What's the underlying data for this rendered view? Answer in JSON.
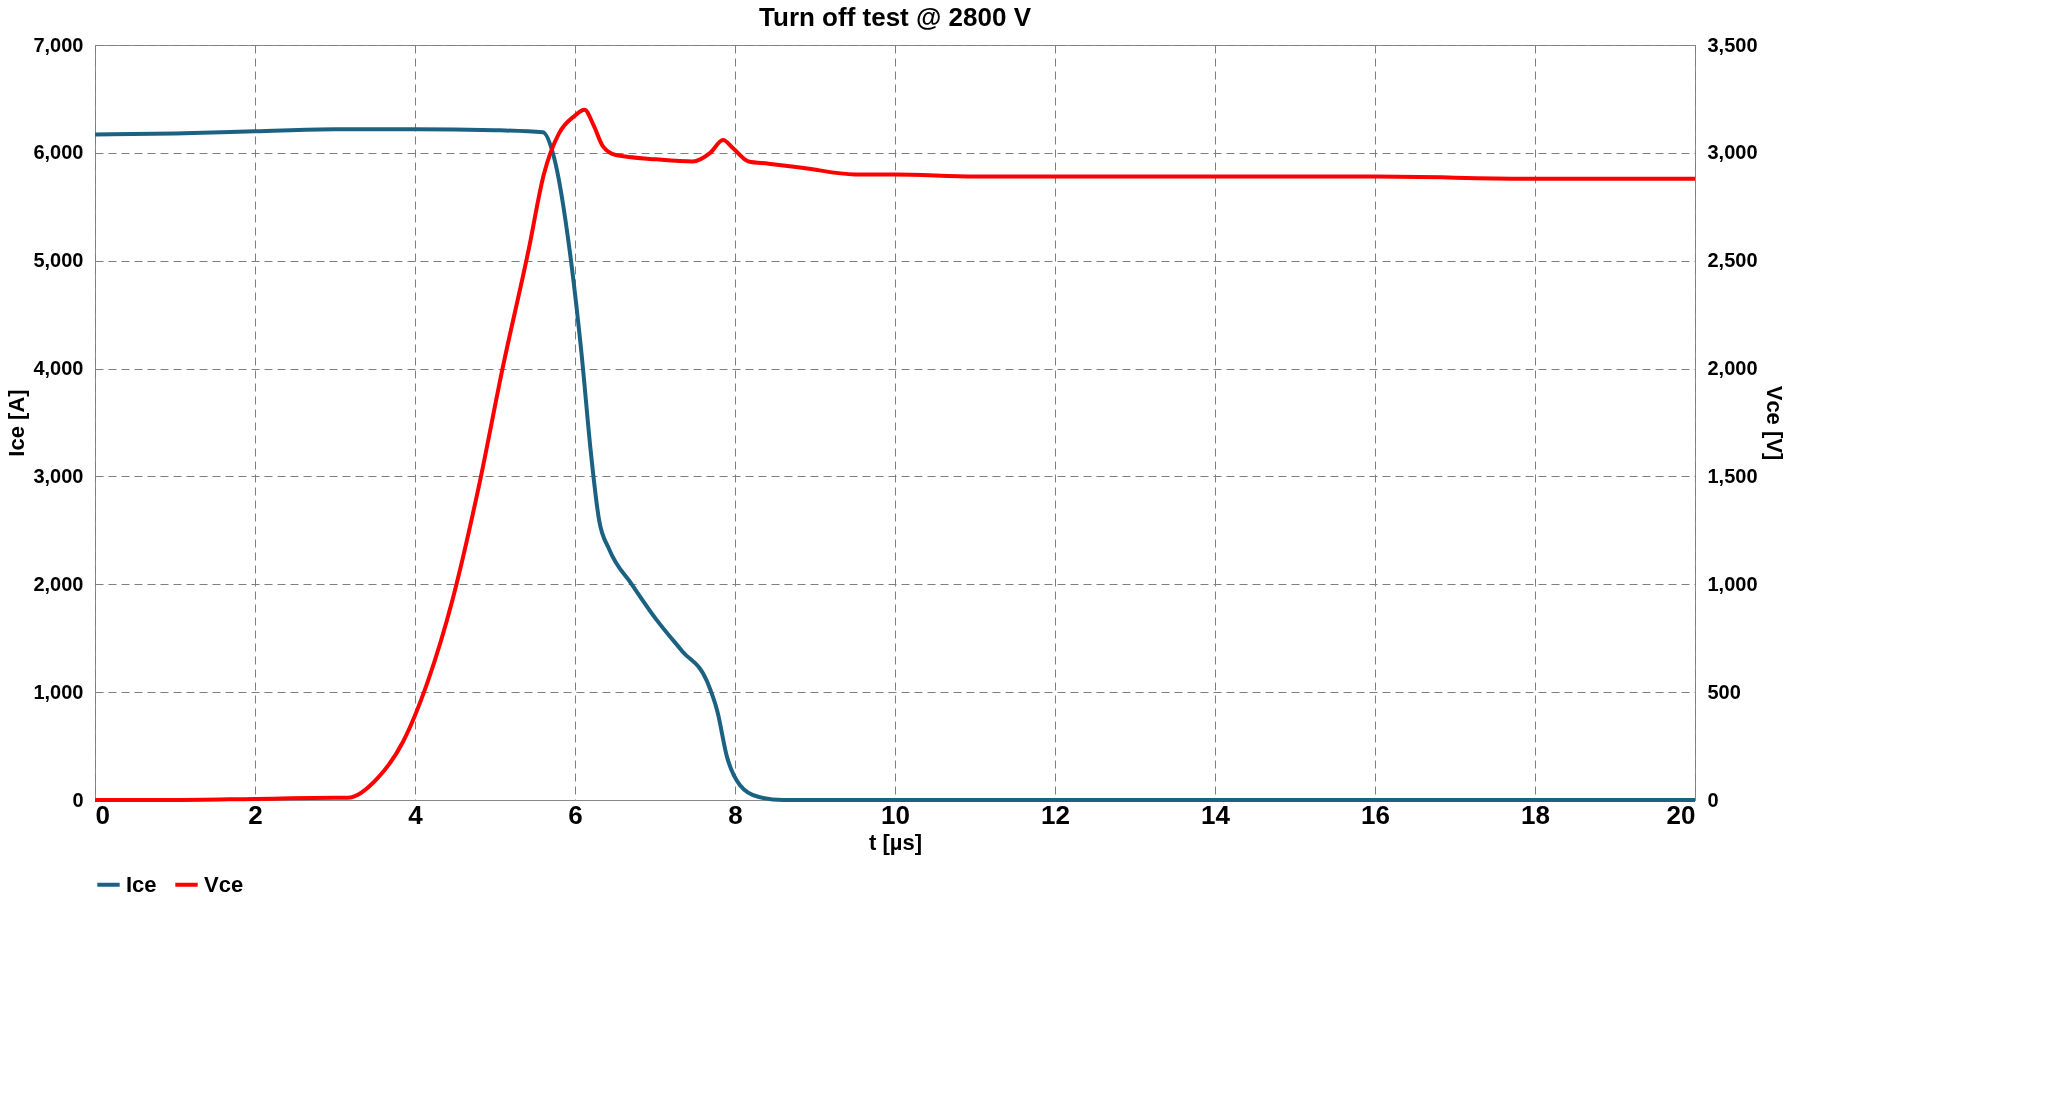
{
  "chart_data": {
    "type": "line",
    "title": "Turn off test @ 2800 V",
    "xlabel": "t [µs]",
    "ylabel": "Ice [A]",
    "y2label": "Vce  [V]",
    "xlim": [
      0,
      20
    ],
    "xticks": [
      0,
      2,
      4,
      6,
      8,
      10,
      12,
      14,
      16,
      18,
      20
    ],
    "ylim": [
      0,
      7000
    ],
    "yticks": [
      0,
      {
        "value": 1000,
        "label": "1,000"
      },
      {
        "value": 2000,
        "label": "2,000"
      },
      {
        "value": 3000,
        "label": "3,000"
      },
      {
        "value": 4000,
        "label": "4,000"
      },
      {
        "value": 5000,
        "label": "5,000"
      },
      {
        "value": 6000,
        "label": "6,000"
      },
      {
        "value": 7000,
        "label": "7,000"
      }
    ],
    "y2lim": [
      0,
      3500
    ],
    "y2ticks": [
      0,
      500,
      {
        "value": 1000,
        "label": "1,000"
      },
      {
        "value": 1500,
        "label": "1,500"
      },
      {
        "value": 2000,
        "label": "2,000"
      },
      {
        "value": 2500,
        "label": "2,500"
      },
      {
        "value": 3000,
        "label": "3,000"
      },
      {
        "value": 3500,
        "label": "3,500"
      }
    ],
    "grid": true,
    "legend": "bottom",
    "marker": "none",
    "line_style": "solid",
    "series": [
      {
        "name": "Ice",
        "color": "#1b6282",
        "axis": "y",
        "x": [
          0,
          1,
          2,
          3,
          4,
          5,
          5.6,
          5.73,
          5.95,
          6.08,
          6.2,
          6.3,
          6.43,
          6.71,
          7.02,
          7.34,
          7.65,
          7.78,
          7.9,
          8.06,
          8.29,
          8.6,
          10,
          12,
          14,
          16,
          18,
          20
        ],
        "values": [
          6170,
          6180,
          6200,
          6220,
          6220,
          6210,
          6190,
          5980,
          5000,
          4150,
          3210,
          2600,
          2320,
          2000,
          1670,
          1380,
          1100,
          820,
          400,
          140,
          30,
          0,
          0,
          0,
          0,
          0,
          0,
          0
        ]
      },
      {
        "name": "Vce",
        "color": "#ff0000",
        "axis": "y2",
        "x": [
          0,
          1,
          2,
          3,
          3.16,
          3.53,
          3.85,
          4.16,
          4.47,
          4.79,
          5.1,
          5.42,
          5.61,
          5.8,
          5.99,
          6.12,
          6.23,
          6.35,
          6.51,
          7.02,
          7.47,
          7.69,
          7.85,
          7.98,
          8.17,
          8.42,
          8.86,
          9.5,
          10,
          11,
          12,
          14,
          16,
          18,
          20
        ],
        "values": [
          0,
          0,
          5,
          10,
          10,
          100,
          270,
          550,
          930,
          1440,
          2010,
          2550,
          2900,
          3090,
          3170,
          3200,
          3130,
          3030,
          2990,
          2970,
          2960,
          3000,
          3060,
          3020,
          2960,
          2950,
          2930,
          2900,
          2900,
          2890,
          2890,
          2890,
          2890,
          2880,
          2880
        ]
      }
    ]
  }
}
